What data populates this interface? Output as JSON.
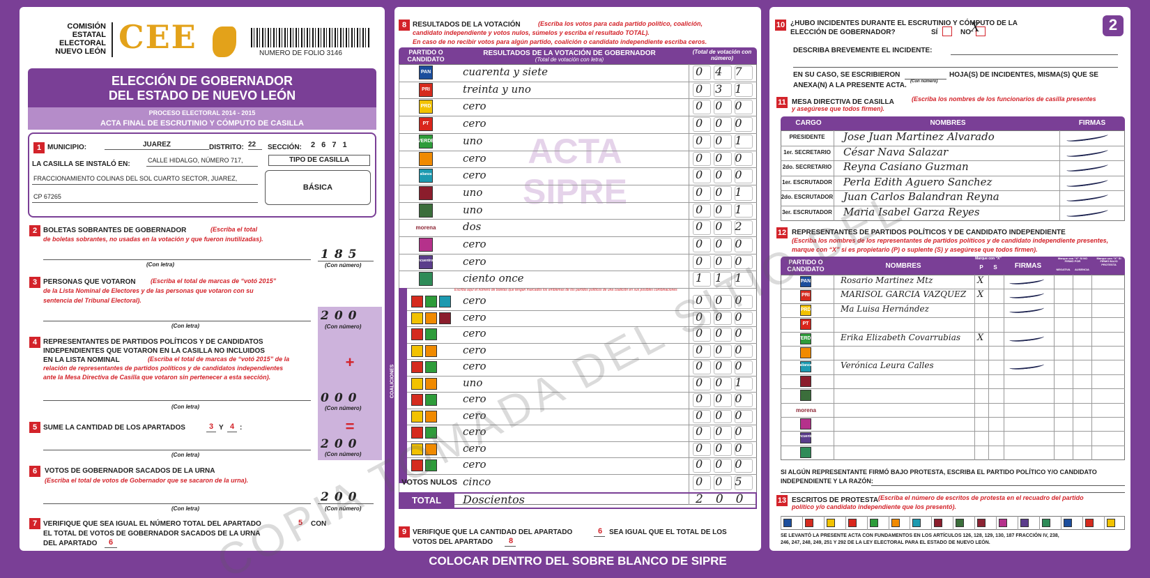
{
  "header": {
    "org": [
      "COMISIÓN",
      "ESTATAL",
      "ELECTORAL",
      "NUEVO LEÓN"
    ],
    "logo": "CEE",
    "folio": "NUMERO DE FOLIO 3146",
    "page": "2"
  },
  "title": {
    "lines": [
      "ELECCIÓN DE GOBERNADOR",
      "DEL ESTADO DE NUEVO LEÓN"
    ],
    "process": "PROCESO ELECTORAL 2014 - 2015",
    "act": "ACTA FINAL DE ESCRUTINIO Y CÓMPUTO DE CASILLA"
  },
  "labels": {
    "letter": "(Con letra)",
    "number": "(Con número)"
  },
  "s1": {
    "num": "1",
    "municipio_label": "MUNICIPIO:",
    "municipio": "JUAREZ",
    "distrito_label": "DISTRITO:",
    "distrito": "22",
    "seccion_label": "SECCIÓN:",
    "seccion": "2 6 7 1",
    "casilla_label": "LA CASILLA SE INSTALÓ EN:",
    "address": [
      "CALLE HIDALGO, NÚMERO 717,",
      "FRACCIONAMIENTO COLINAS DEL SOL CUARTO SECTOR, JUAREZ,",
      "CP 67265"
    ],
    "tipo_label": "TIPO DE CASILLA",
    "tipo": "BÁSICA"
  },
  "s2": {
    "num": "2",
    "title": "BOLETAS SOBRANTES DE GOBERNADOR",
    "note": [
      "(Escriba el total",
      "de boletas sobrantes, no usadas en la votación y que fueron inutilizadas)."
    ],
    "number": "185"
  },
  "s3": {
    "num": "3",
    "title": "PERSONAS QUE VOTARON",
    "note": [
      "(Escriba el total de marcas de “votó 2015”",
      "de la Lista Nominal de Electores y de las personas que votaron con su",
      "sentencia del Tribunal Electoral)."
    ],
    "number": "200"
  },
  "s4": {
    "num": "4",
    "title": [
      "REPRESENTANTES DE PARTIDOS POLÍTICOS Y DE CANDIDATOS",
      "INDEPENDIENTES QUE VOTARON EN LA CASILLA NO INCLUIDOS",
      "EN LA LISTA NOMINAL"
    ],
    "note": [
      "(Escriba el total de marcas de “votó 2015” de la",
      "relación de representantes de partidos políticos y de candidatos independientes",
      "ante la Mesa Directiva de Casilla que votaron sin pertenecer a esta sección)."
    ],
    "number": "000",
    "sign": "+"
  },
  "s5": {
    "num": "5",
    "text": "SUME LA CANTIDAD DE LOS APARTADOS",
    "a": "3",
    "y": "Y",
    "b": "4",
    "colon": ":",
    "number": "200",
    "sign": "="
  },
  "s6": {
    "num": "6",
    "title": "VOTOS DE GOBERNADOR SACADOS DE LA URNA",
    "note": "(Escriba el total de votos de Gobernador que se sacaron de la urna).",
    "number": "200"
  },
  "s7": {
    "num": "7",
    "parts": [
      "VERIFIQUE QUE SEA IGUAL EL NÚMERO TOTAL DEL APARTADO",
      "5",
      "CON",
      "EL TOTAL DE VOTOS DE GOBERNADOR SACADOS DE LA URNA",
      "DEL APARTADO",
      "6"
    ]
  },
  "s8": {
    "num": "8",
    "title": "RESULTADOS DE LA VOTACIÓN",
    "note": [
      "(Escriba los votos para cada partido político, coalición,",
      "candidato independiente y votos nulos, súmelos y escriba el resultado TOTAL)."
    ],
    "note2": "En caso de no recibir votos para algún partido, coalición o candidato independiente escriba ceros.",
    "headers": {
      "party": "PARTIDO O CANDIDATO",
      "results": "RESULTADOS DE LA VOTACIÓN DE GOBERNADOR",
      "letter": "(Total de votación con letra)",
      "number": "(Total de votación con número)"
    },
    "watermark": [
      "ACTA",
      "SIPRE"
    ],
    "rows": [
      {
        "logo": "PAN",
        "letter": "cuarenta y siete",
        "number": "047"
      },
      {
        "logo": "PRI",
        "letter": "treinta y uno",
        "number": "031"
      },
      {
        "logo": "PRD",
        "letter": "cero",
        "number": "000"
      },
      {
        "logo": "PT",
        "letter": "cero",
        "number": "000"
      },
      {
        "logo": "VERDE",
        "letter": "uno",
        "number": "001"
      },
      {
        "logo": null,
        "letter": "cero",
        "number": "000"
      },
      {
        "logo": "alianza",
        "letter": "cero",
        "number": "000"
      },
      {
        "logo": null,
        "letter": "uno",
        "number": "001"
      },
      {
        "logo": null,
        "letter": "uno",
        "number": "001"
      },
      {
        "logo": "morena",
        "letter": "dos",
        "number": "002"
      },
      {
        "logo": null,
        "letter": "cero",
        "number": "000"
      },
      {
        "logo": "encuentro social",
        "letter": "cero",
        "number": "000"
      },
      {
        "logo": null,
        "letter": "ciento once",
        "number": "111"
      }
    ],
    "coalition_label": "COALICIONES",
    "coalition_note": "Escriba aquí el número de boletas que tengan marcados los emblemas de los partidos políticos de una coalición en sus posibles combinaciones",
    "coalitions": [
      {
        "letter": "cero",
        "number": "000"
      },
      {
        "letter": "cero",
        "number": "000"
      },
      {
        "letter": "cero",
        "number": "000"
      },
      {
        "letter": "cero",
        "number": "000"
      },
      {
        "letter": "cero",
        "number": "000"
      },
      {
        "letter": "uno",
        "number": "001"
      },
      {
        "letter": "cero",
        "number": "000"
      },
      {
        "letter": "cero",
        "number": "000"
      },
      {
        "letter": "cero",
        "number": "000"
      },
      {
        "letter": "cero",
        "number": "000"
      },
      {
        "letter": "cero",
        "number": "000"
      }
    ],
    "nulos": {
      "label": "VOTOS NULOS",
      "letter": "cinco",
      "number": "005"
    },
    "total": {
      "label": "TOTAL",
      "letter": "Doscientos",
      "number": "200"
    }
  },
  "s9": {
    "num": "9",
    "parts": [
      "VERIFIQUE QUE LA CANTIDAD DEL APARTADO",
      "6",
      "SEA IGUAL QUE EL TOTAL DE LOS",
      "VOTOS DEL APARTADO",
      "8"
    ]
  },
  "s10": {
    "num": "10",
    "question": [
      "¿HUBO INCIDENTES DURANTE EL ESCRUTINIO Y CÓMPUTO DE LA",
      "ELECCIÓN DE GOBERNADOR?"
    ],
    "si": "SÍ",
    "no": "NO",
    "mark": "X",
    "describe": "DESCRIBA BREVEMENTE EL INCIDENTE:",
    "hojas": [
      "EN SU CASO, SE ESCRIBIERON",
      "HOJA(S) DE INCIDENTES, MISMA(S) QUE SE",
      "ANEXA(N) A LA PRESENTE ACTA."
    ]
  },
  "s11": {
    "num": "11",
    "title": "MESA DIRECTIVA DE CASILLA",
    "note": [
      "(Escriba los nombres de los funcionarios de casilla presentes",
      "y asegúrese que todos firmen)."
    ],
    "headers": [
      "CARGO",
      "NOMBRES",
      "FIRMAS"
    ],
    "rows": [
      {
        "cargo": "PRESIDENTE",
        "name": "Jose Juan Martinez Alvarado"
      },
      {
        "cargo": "1er. SECRETARIO",
        "name": "César Nava Salazar"
      },
      {
        "cargo": "2do. SECRETARIO",
        "name": "Reyna Casiano Guzman"
      },
      {
        "cargo": "1er. ESCRUTADOR",
        "name": "Perla Edith Aguero Sanchez"
      },
      {
        "cargo": "2do. ESCRUTADOR",
        "name": "Juan Carlos Balandran Reyna"
      },
      {
        "cargo": "3er. ESCRUTADOR",
        "name": "Maria Isabel Garza Reyes"
      }
    ]
  },
  "s12": {
    "num": "12",
    "title": "REPRESENTANTES DE PARTIDOS POLÍTICOS Y DE CANDIDATO INDEPENDIENTE",
    "note": [
      "(Escriba los nombres de los representantes de partidos políticos y de candidato independiente presentes,",
      "marque con “X” si es propietario (P) o suplente (S) y asegúrese que todos firmen)."
    ],
    "headers": {
      "party": "PARTIDO O CANDIDATO",
      "names": "NOMBRES",
      "mark": "Marque con “X”",
      "p": "P",
      "s": "S",
      "firmas": "FIRMAS",
      "no_firmo": "Marque con “X” SI NO FIRMÓ POR",
      "negativa": "NEGATIVA",
      "ausencia": "AUSENCIA",
      "protesta": "Marque con “X” SI FIRMÓ BAJO PROTESTA"
    },
    "rows": [
      {
        "name": "Rosario Martinez Mtz",
        "mark": "X"
      },
      {
        "name": "MARISOL GARCIA VAZQUEZ",
        "mark": "X"
      },
      {
        "name": "Ma Luisa Hernández"
      },
      null,
      {
        "name": "Erika Elizabeth Covarrubias",
        "mark": "X"
      },
      null,
      {
        "name": "Verónica Leura Calles"
      },
      null,
      null,
      null,
      null,
      null,
      null
    ]
  },
  "protest_reason": [
    "SI ALGÚN REPRESENTANTE FIRMÓ BAJO PROTESTA, ESCRIBA EL PARTIDO POLÍTICO Y/O CANDIDATO",
    "INDEPENDIENTE Y LA RAZÓN:"
  ],
  "s13": {
    "num": "13",
    "title": "ESCRITOS DE PROTESTA",
    "note": [
      "(Escriba el número de escritos de protesta en el recuadro del partido",
      "político y/o candidato independiente que los presentó)."
    ]
  },
  "legal": [
    "SE LEVANTÓ LA PRESENTE ACTA CON FUNDAMENTOS EN LOS ARTÍCULOS 126, 128, 129, 130, 187 FRACCIÓN IV, 238,",
    "246, 247, 248, 249, 251 Y 292 DE LA LEY ELECTORAL PARA EL ESTADO DE NUEVO LEÓN."
  ],
  "footer": "COLOCAR DENTRO DEL SOBRE BLANCO DE SIPRE",
  "copy_watermark": "COPIA TOMADA DEL SITIO DEL"
}
